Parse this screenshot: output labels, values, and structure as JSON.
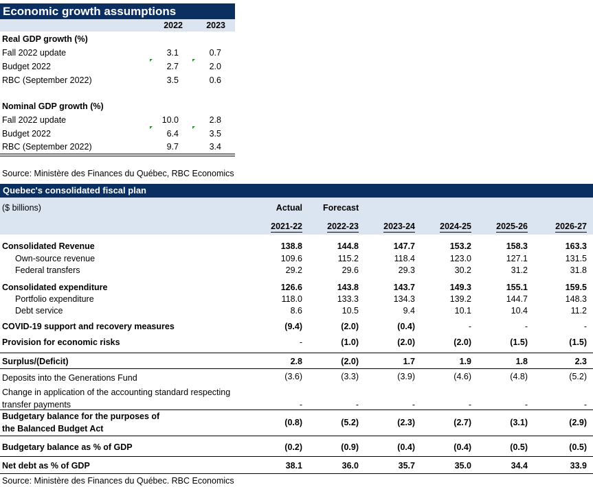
{
  "table1": {
    "title": "Economic growth assumptions",
    "col_headers": [
      "2022",
      "2023"
    ],
    "sections": [
      {
        "header": "Real GDP growth (%)",
        "rows": [
          {
            "label": "Fall 2022 update",
            "v2022": "3.1",
            "v2023": "0.7"
          },
          {
            "label": "Budget 2022",
            "v2022": "2.7",
            "v2023": "2.0"
          },
          {
            "label": "RBC (September 2022)",
            "v2022": "3.5",
            "v2023": "0.6"
          }
        ]
      },
      {
        "header": "Nominal GDP growth (%)",
        "rows": [
          {
            "label": "Fall 2022 update",
            "v2022": "10.0",
            "v2023": "2.8"
          },
          {
            "label": "Budget 2022",
            "v2022": "6.4",
            "v2023": "3.5"
          },
          {
            "label": "RBC (September 2022)",
            "v2022": "9.7",
            "v2023": "3.4"
          }
        ]
      }
    ],
    "source": "Source: Ministère des Finances du Québec, RBC Economics"
  },
  "table2": {
    "title": "Quebec's consolidated fiscal plan",
    "units": "($ billions)",
    "actual_label": "Actual",
    "forecast_label": "Forecast",
    "years": [
      "2021-22",
      "2022-23",
      "2023-24",
      "2024-25",
      "2025-26",
      "2026-27"
    ],
    "rows": [
      {
        "label": "Consolidated Revenue",
        "values": [
          "138.8",
          "144.8",
          "147.7",
          "153.2",
          "158.3",
          "163.3"
        ]
      },
      {
        "label": "Own-source revenue",
        "values": [
          "109.6",
          "115.2",
          "118.4",
          "123.0",
          "127.1",
          "131.5"
        ]
      },
      {
        "label": "Federal transfers",
        "values": [
          "29.2",
          "29.6",
          "29.3",
          "30.2",
          "31.2",
          "31.8"
        ]
      },
      {
        "label": "Consolidated expenditure",
        "values": [
          "126.6",
          "143.8",
          "143.7",
          "149.3",
          "155.1",
          "159.5"
        ]
      },
      {
        "label": "Portfolio expenditure",
        "values": [
          "118.0",
          "133.3",
          "134.3",
          "139.2",
          "144.7",
          "148.3"
        ]
      },
      {
        "label": "Debt service",
        "values": [
          "8.6",
          "10.5",
          "9.4",
          "10.1",
          "10.4",
          "11.2"
        ]
      },
      {
        "label": "COVID-19 support and recovery measures",
        "values": [
          "(9.4)",
          "(2.0)",
          "(0.4)",
          "-",
          "-",
          "-"
        ]
      },
      {
        "label": "Provision for economic risks",
        "values": [
          "-",
          "(1.0)",
          "(2.0)",
          "(2.0)",
          "(1.5)",
          "(1.5)"
        ]
      },
      {
        "label": "Surplus/(Deficit)",
        "values": [
          "2.8",
          "(2.0)",
          "1.7",
          "1.9",
          "1.8",
          "2.3"
        ]
      },
      {
        "label": "Deposits into the Generations Fund",
        "values": [
          "(3.6)",
          "(3.3)",
          "(3.9)",
          "(4.6)",
          "(4.8)",
          "(5.2)"
        ]
      },
      {
        "label_line1": "Change in application of the accounting standard respecting",
        "label_line2": "transfer payments",
        "values": [
          "-",
          "-",
          "-",
          "-",
          "-",
          "-"
        ]
      },
      {
        "label_line1": "Budgetary balance for the purposes of",
        "label_line2": "the Balanced Budget Act",
        "values": [
          "(0.8)",
          "(5.2)",
          "(2.3)",
          "(2.7)",
          "(3.1)",
          "(2.9)"
        ]
      },
      {
        "label": "Budgetary balance as % of GDP",
        "values": [
          "(0.2)",
          "(0.9)",
          "(0.4)",
          "(0.4)",
          "(0.5)",
          "(0.5)"
        ]
      },
      {
        "label": "Net debt as % of GDP",
        "values": [
          "38.1",
          "36.0",
          "35.7",
          "35.0",
          "34.4",
          "33.9"
        ]
      }
    ],
    "source": "Source: Ministère des Finances du Québec. RBC Economics"
  }
}
